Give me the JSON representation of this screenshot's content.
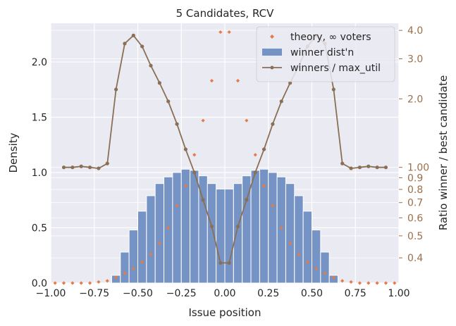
{
  "chart_data": {
    "type": "bar",
    "title": "5 Candidates, RCV",
    "xlabel": "Issue position",
    "ylabel": "Density",
    "y2label": "Ratio winner / best candidate",
    "xlim": [
      -1.0,
      1.0
    ],
    "ylim": [
      0,
      2.35
    ],
    "y2scale": "log",
    "y2lim": [
      0.31,
      4.3
    ],
    "x_ticks": [
      "−1.00",
      "−0.75",
      "−0.50",
      "−0.25",
      "0.00",
      "0.25",
      "0.50",
      "0.75",
      "1.00"
    ],
    "x_tick_values": [
      -1.0,
      -0.75,
      -0.5,
      -0.25,
      0.0,
      0.25,
      0.5,
      0.75,
      1.0
    ],
    "y_ticks": [
      "0.0",
      "0.5",
      "1.0",
      "1.5",
      "2.0"
    ],
    "y_tick_values": [
      0.0,
      0.5,
      1.0,
      1.5,
      2.0
    ],
    "y2_ticks": [
      "0.4",
      "0.5",
      "0.6",
      "0.7",
      "0.8",
      "0.9",
      "1.00",
      "2.0",
      "3.0",
      "4.0"
    ],
    "y2_tick_values": [
      0.4,
      0.5,
      0.6,
      0.7,
      0.8,
      0.9,
      1.0,
      2.0,
      3.0,
      4.0
    ],
    "grid": true,
    "legend_position": "top-right",
    "colors": {
      "background": "#eaeaf2",
      "grid": "#ffffff",
      "bars": "#7593c4",
      "theory": "#e57c48",
      "ratio": "#8b6f55",
      "right_axis": "#9b6f4b"
    },
    "series": [
      {
        "name": "winner dist'n",
        "type": "bar",
        "bin_width": 0.05,
        "x": [
          -0.625,
          -0.575,
          -0.525,
          -0.475,
          -0.425,
          -0.375,
          -0.325,
          -0.275,
          -0.225,
          -0.175,
          -0.125,
          -0.075,
          -0.025,
          0.025,
          0.075,
          0.125,
          0.175,
          0.225,
          0.275,
          0.325,
          0.375,
          0.425,
          0.475,
          0.525,
          0.575,
          0.625
        ],
        "values": [
          0.07,
          0.28,
          0.48,
          0.65,
          0.79,
          0.9,
          0.96,
          1.0,
          1.03,
          1.02,
          0.97,
          0.9,
          0.85,
          0.85,
          0.9,
          0.97,
          1.02,
          1.03,
          1.0,
          0.96,
          0.9,
          0.79,
          0.65,
          0.48,
          0.28,
          0.07
        ]
      },
      {
        "name": "theory, ∞ voters",
        "type": "scatter",
        "x": [
          -0.975,
          -0.925,
          -0.875,
          -0.825,
          -0.775,
          -0.725,
          -0.675,
          -0.625,
          -0.575,
          -0.525,
          -0.475,
          -0.425,
          -0.375,
          -0.325,
          -0.275,
          -0.225,
          -0.175,
          -0.125,
          -0.075,
          -0.025,
          0.025,
          0.075,
          0.125,
          0.175,
          0.225,
          0.275,
          0.325,
          0.375,
          0.425,
          0.475,
          0.525,
          0.575,
          0.625,
          0.675,
          0.725,
          0.775,
          0.825,
          0.875,
          0.925,
          0.975
        ],
        "values": [
          0.0,
          0.0,
          0.0,
          0.0,
          0.0,
          0.01,
          0.02,
          0.05,
          0.09,
          0.13,
          0.19,
          0.26,
          0.36,
          0.5,
          0.7,
          0.88,
          1.16,
          1.47,
          1.83,
          2.27,
          2.27,
          1.83,
          1.47,
          1.16,
          0.88,
          0.7,
          0.5,
          0.36,
          0.26,
          0.19,
          0.13,
          0.09,
          0.05,
          0.02,
          0.01,
          0.0,
          0.0,
          0.0,
          0.0,
          0.0
        ]
      },
      {
        "name": "winners / max_util",
        "type": "line",
        "axis": "right",
        "x": [
          -0.925,
          -0.875,
          -0.825,
          -0.775,
          -0.725,
          -0.675,
          -0.625,
          -0.575,
          -0.525,
          -0.475,
          -0.425,
          -0.375,
          -0.325,
          -0.275,
          -0.225,
          -0.175,
          -0.125,
          -0.075,
          -0.025,
          0.025,
          0.075,
          0.125,
          0.175,
          0.225,
          0.275,
          0.325,
          0.375,
          0.425,
          0.475,
          0.525,
          0.575,
          0.625,
          0.675,
          0.725,
          0.775,
          0.825,
          0.875,
          0.925
        ],
        "values": [
          1.0,
          1.0,
          1.01,
          1.0,
          0.99,
          1.04,
          2.2,
          3.5,
          3.8,
          3.4,
          2.8,
          2.35,
          1.95,
          1.55,
          1.2,
          0.95,
          0.72,
          0.55,
          0.38,
          0.38,
          0.55,
          0.72,
          0.95,
          1.2,
          1.55,
          1.95,
          2.35,
          2.8,
          3.4,
          3.8,
          3.5,
          2.2,
          1.04,
          0.99,
          1.0,
          1.01,
          1.0,
          1.0
        ]
      }
    ]
  }
}
